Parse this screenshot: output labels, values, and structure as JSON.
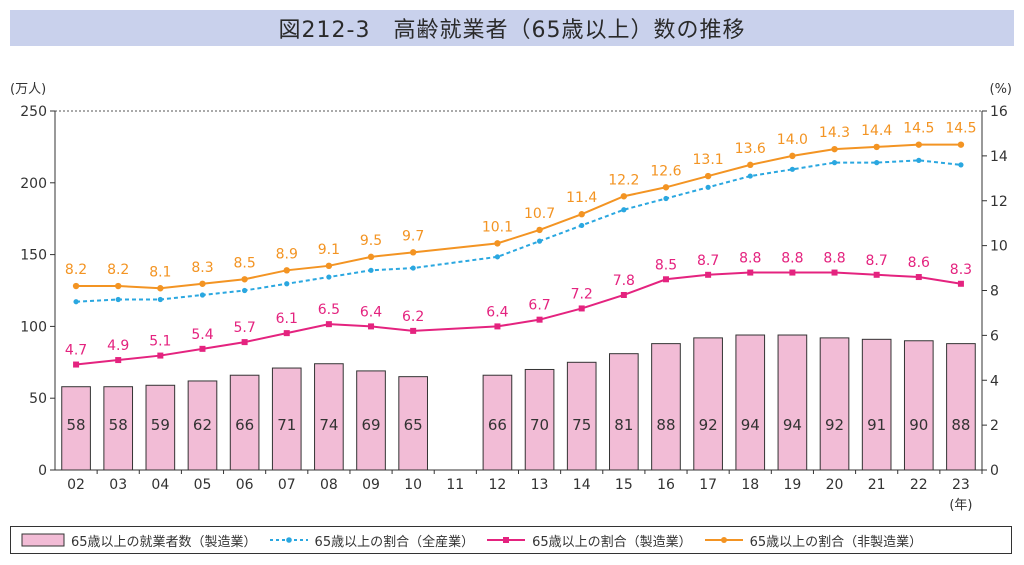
{
  "title": "図212-3　高齢就業者（65歳以上）数の推移",
  "chart_data": {
    "type": "bar",
    "title": "図212-3　高齢就業者（65歳以上）数の推移",
    "y_left_unit": "(万人)",
    "y_right_unit": "(%)",
    "x_unit": "(年)",
    "categories": [
      "02",
      "03",
      "04",
      "05",
      "06",
      "07",
      "08",
      "09",
      "10",
      "11",
      "12",
      "13",
      "14",
      "15",
      "16",
      "17",
      "18",
      "19",
      "20",
      "21",
      "22",
      "23"
    ],
    "ylim_left": [
      0,
      250
    ],
    "ylim_right": [
      0,
      16
    ],
    "yticks_left": [
      "0",
      "50",
      "100",
      "150",
      "200",
      "250"
    ],
    "yticks_right": [
      "0",
      "2",
      "4",
      "6",
      "8",
      "10",
      "12",
      "14",
      "16"
    ],
    "series": [
      {
        "name": "65歳以上の就業者数（製造業）",
        "type": "bar",
        "axis": "left",
        "color": "#f2bcd6",
        "values": [
          58,
          58,
          59,
          62,
          66,
          71,
          74,
          69,
          65,
          null,
          66,
          70,
          75,
          81,
          88,
          92,
          94,
          94,
          92,
          91,
          90,
          88
        ]
      },
      {
        "name": "65歳以上の割合（全産業）",
        "type": "line",
        "axis": "right",
        "color": "#2aa7e0",
        "dashed": true,
        "values": [
          7.5,
          7.6,
          7.6,
          7.8,
          8.0,
          8.3,
          8.6,
          8.9,
          9.0,
          null,
          9.5,
          10.2,
          10.9,
          11.6,
          12.1,
          12.6,
          13.1,
          13.4,
          13.7,
          13.7,
          13.8,
          13.6
        ]
      },
      {
        "name": "65歳以上の割合（製造業）",
        "type": "line",
        "axis": "right",
        "color": "#e4237f",
        "values": [
          4.7,
          4.9,
          5.1,
          5.4,
          5.7,
          6.1,
          6.5,
          6.4,
          6.2,
          null,
          6.4,
          6.7,
          7.2,
          7.8,
          8.5,
          8.7,
          8.8,
          8.8,
          8.8,
          8.7,
          8.6,
          8.3
        ]
      },
      {
        "name": "65歳以上の割合（非製造業）",
        "type": "line",
        "axis": "right",
        "color": "#f39423",
        "values": [
          8.2,
          8.2,
          8.1,
          8.3,
          8.5,
          8.9,
          9.1,
          9.5,
          9.7,
          null,
          10.1,
          10.7,
          11.4,
          12.2,
          12.6,
          13.1,
          13.6,
          14.0,
          14.3,
          14.4,
          14.5,
          14.5
        ]
      }
    ],
    "bar_labels": [
      "58",
      "58",
      "59",
      "62",
      "66",
      "71",
      "74",
      "69",
      "65",
      "",
      "66",
      "70",
      "75",
      "81",
      "88",
      "92",
      "94",
      "94",
      "92",
      "91",
      "90",
      "88"
    ],
    "mfg_labels": [
      "4.7",
      "4.9",
      "5.1",
      "5.4",
      "5.7",
      "6.1",
      "6.5",
      "6.4",
      "6.2",
      "",
      "6.4",
      "6.7",
      "7.2",
      "7.8",
      "8.5",
      "8.7",
      "8.8",
      "8.8",
      "8.8",
      "8.7",
      "8.6",
      "8.3"
    ],
    "nonmfg_labels": [
      "8.2",
      "8.2",
      "8.1",
      "8.3",
      "8.5",
      "8.9",
      "9.1",
      "9.5",
      "9.7",
      "",
      "10.1",
      "10.7",
      "11.4",
      "12.2",
      "12.6",
      "13.1",
      "13.6",
      "14.0",
      "14.3",
      "14.4",
      "14.5",
      "14.5"
    ],
    "grid": false,
    "legend_position": "bottom"
  },
  "legend": {
    "bars": "65歳以上の就業者数（製造業）",
    "all": "65歳以上の割合（全産業）",
    "mfg": "65歳以上の割合（製造業）",
    "nonmfg": "65歳以上の割合（非製造業）"
  }
}
